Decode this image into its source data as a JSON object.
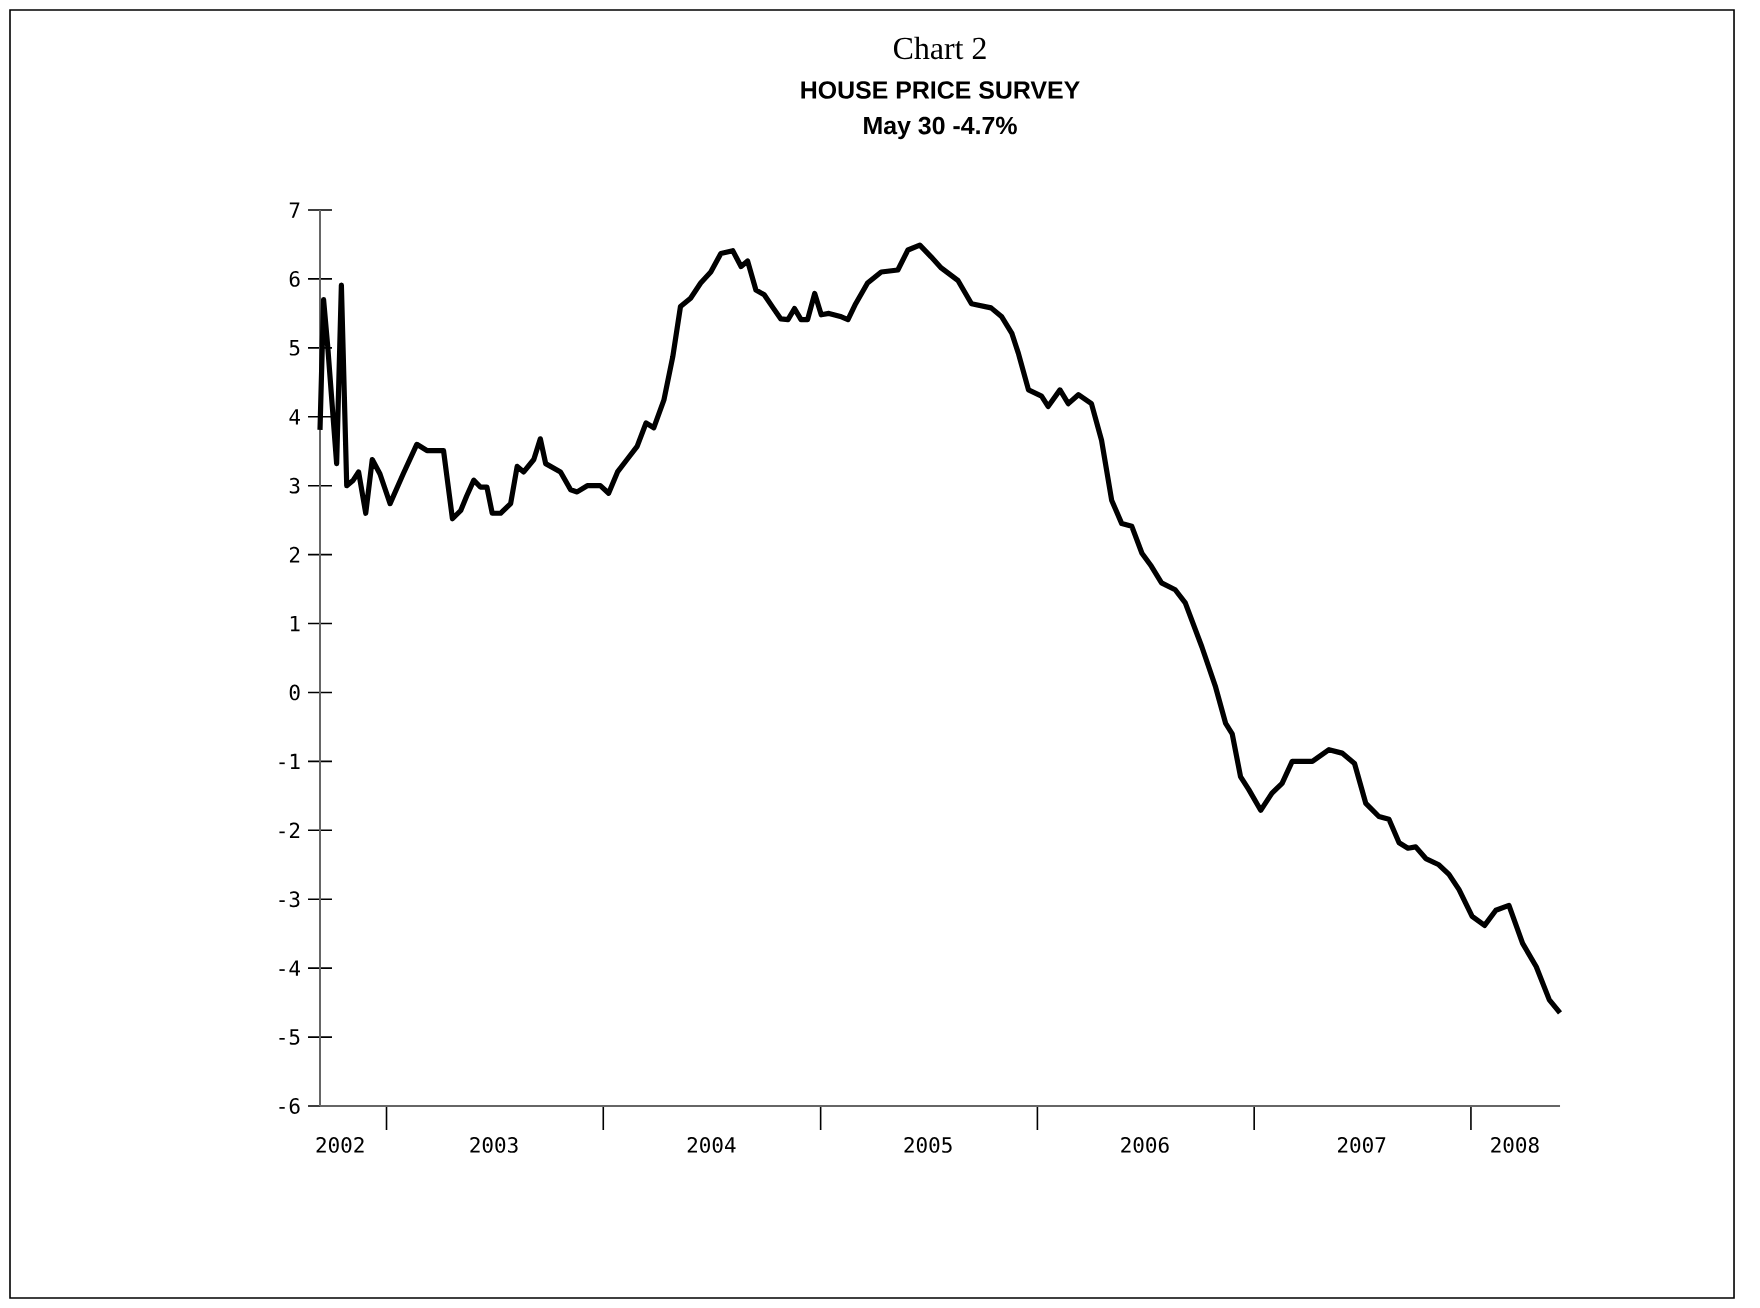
{
  "chart_data": {
    "type": "line",
    "title": "Chart 2",
    "subtitle": "HOUSE PRICE SURVEY",
    "annotations": [
      "May 30    -4.7%"
    ],
    "color": "#000000",
    "x": [
      "2002-09-11",
      "2002-09-17",
      "2002-09-24",
      "2002-10-09",
      "2002-10-17",
      "2002-10-26",
      "2002-11-06",
      "2002-11-15",
      "2002-11-27",
      "2002-12-08",
      "2002-12-21",
      "2003-01-07",
      "2003-01-29",
      "2003-02-21",
      "2003-03-10",
      "2003-04-07",
      "2003-04-22",
      "2003-05-06",
      "2003-05-16",
      "2003-05-28",
      "2003-06-08",
      "2003-06-19",
      "2003-06-28",
      "2003-07-12",
      "2003-07-29",
      "2003-08-09",
      "2003-08-20",
      "2003-09-06",
      "2003-09-17",
      "2003-09-26",
      "2003-10-21",
      "2003-11-07",
      "2003-11-18",
      "2003-12-05",
      "2003-12-27",
      "2004-01-10",
      "2004-01-25",
      "2004-02-10",
      "2004-02-27",
      "2004-03-13",
      "2004-03-26",
      "2004-04-12",
      "2004-04-27",
      "2004-05-10",
      "2004-05-27",
      "2004-06-13",
      "2004-06-30",
      "2004-07-17",
      "2004-08-06",
      "2004-08-20",
      "2004-08-31",
      "2004-09-14",
      "2004-09-28",
      "2004-10-13",
      "2004-10-26",
      "2004-11-07",
      "2004-11-18",
      "2004-11-29",
      "2004-12-10",
      "2004-12-22",
      "2005-01-02",
      "2005-01-15",
      "2005-02-05",
      "2005-02-16",
      "2005-03-01",
      "2005-03-21",
      "2005-04-13",
      "2005-05-11",
      "2005-05-28",
      "2005-06-17",
      "2005-07-06",
      "2005-07-23",
      "2005-08-20",
      "2005-09-12",
      "2005-10-15",
      "2005-11-02",
      "2005-11-19",
      "2005-11-30",
      "2005-12-17",
      "2006-01-08",
      "2006-01-19",
      "2006-02-08",
      "2006-02-22",
      "2006-03-11",
      "2006-04-02",
      "2006-04-19",
      "2006-05-06",
      "2006-05-23",
      "2006-06-09",
      "2006-06-26",
      "2006-07-12",
      "2006-07-29",
      "2006-08-21",
      "2006-09-07",
      "2006-10-05",
      "2006-10-28",
      "2006-11-14",
      "2006-11-25",
      "2006-12-09",
      "2006-12-23",
      "2007-01-12",
      "2007-01-31",
      "2007-02-17",
      "2007-03-06",
      "2007-04-09",
      "2007-05-07",
      "2007-05-29",
      "2007-06-19",
      "2007-07-08",
      "2007-07-30",
      "2007-08-16",
      "2007-09-02",
      "2007-09-17",
      "2007-09-30",
      "2007-10-17",
      "2007-11-08",
      "2007-11-25",
      "2007-12-12",
      "2008-01-03",
      "2008-01-24",
      "2008-02-12",
      "2008-03-05",
      "2008-03-28",
      "2008-04-20",
      "2008-05-12",
      "2008-05-30"
    ],
    "values": [
      3.81,
      5.7,
      5.02,
      3.32,
      5.91,
      3.0,
      3.08,
      3.2,
      2.6,
      3.38,
      3.17,
      2.74,
      3.17,
      3.6,
      3.51,
      3.51,
      2.52,
      2.64,
      2.85,
      3.08,
      2.98,
      2.98,
      2.6,
      2.6,
      2.74,
      3.28,
      3.2,
      3.38,
      3.68,
      3.32,
      3.2,
      2.94,
      2.91,
      3.0,
      3.0,
      2.89,
      3.2,
      3.38,
      3.57,
      3.91,
      3.84,
      4.24,
      4.87,
      5.6,
      5.72,
      5.94,
      6.1,
      6.37,
      6.41,
      6.18,
      6.26,
      5.84,
      5.77,
      5.58,
      5.42,
      5.41,
      5.57,
      5.41,
      5.41,
      5.79,
      5.48,
      5.5,
      5.45,
      5.41,
      5.64,
      5.94,
      6.1,
      6.13,
      6.42,
      6.49,
      6.32,
      6.16,
      5.98,
      5.64,
      5.58,
      5.45,
      5.21,
      4.92,
      4.39,
      4.3,
      4.15,
      4.39,
      4.19,
      4.32,
      4.19,
      3.66,
      2.79,
      2.45,
      2.41,
      2.02,
      1.83,
      1.59,
      1.49,
      1.3,
      0.66,
      0.08,
      -0.45,
      -0.6,
      -1.22,
      -1.41,
      -1.71,
      -1.46,
      -1.32,
      -1.0,
      -1.0,
      -0.83,
      -0.88,
      -1.03,
      -1.61,
      -1.8,
      -1.84,
      -2.18,
      -2.26,
      -2.24,
      -2.41,
      -2.5,
      -2.64,
      -2.86,
      -3.25,
      -3.38,
      -3.16,
      -3.09,
      -3.64,
      -3.98,
      -4.46,
      -4.65
    ],
    "xlim": [
      "2002-09-11",
      "2008-05-30"
    ],
    "xticks": [
      {
        "value": "2002-10-15",
        "label": "2002"
      },
      {
        "value": "2003-01-01",
        "label": null
      },
      {
        "value": "2003-07-01",
        "label": "2003"
      },
      {
        "value": "2004-01-01",
        "label": null
      },
      {
        "value": "2004-07-01",
        "label": "2004"
      },
      {
        "value": "2005-01-01",
        "label": null
      },
      {
        "value": "2005-07-01",
        "label": "2005"
      },
      {
        "value": "2006-01-01",
        "label": null
      },
      {
        "value": "2006-07-01",
        "label": "2006"
      },
      {
        "value": "2007-01-01",
        "label": null
      },
      {
        "value": "2007-07-01",
        "label": "2007"
      },
      {
        "value": "2008-01-01",
        "label": null
      },
      {
        "value": "2008-03-15",
        "label": "2008"
      }
    ],
    "ylim": [
      -6,
      7
    ],
    "yticks": [
      -6,
      -5,
      -4,
      -3,
      -2,
      -1,
      0,
      1,
      2,
      3,
      4,
      5,
      6,
      7
    ]
  }
}
